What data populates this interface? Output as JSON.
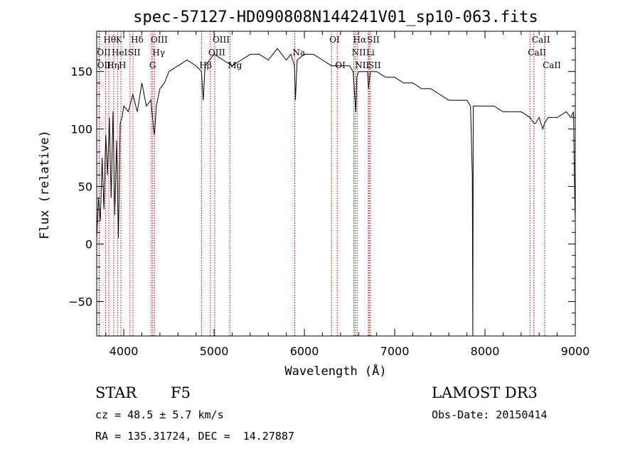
{
  "chart_data": {
    "type": "line",
    "title": "spec-57127-HD090808N144241V01_sp10-063.fits",
    "xlabel": "Wavelength (Å)",
    "ylabel": "Flux (relative)",
    "xlim": [
      3700,
      9000
    ],
    "ylim": [
      -80,
      185
    ],
    "xticks": [
      4000,
      5000,
      6000,
      7000,
      8000,
      9000
    ],
    "yticks": [
      -50,
      0,
      50,
      100,
      150
    ],
    "grid": false,
    "series": [
      {
        "name": "Flux",
        "x": [
          3700,
          3720,
          3740,
          3760,
          3780,
          3800,
          3820,
          3840,
          3860,
          3880,
          3900,
          3920,
          3940,
          3960,
          3980,
          4000,
          4050,
          4100,
          4150,
          4200,
          4250,
          4300,
          4330,
          4340,
          4360,
          4400,
          4450,
          4500,
          4600,
          4700,
          4800,
          4860,
          4880,
          4900,
          4950,
          5000,
          5100,
          5200,
          5300,
          5400,
          5500,
          5600,
          5700,
          5800,
          5850,
          5890,
          5900,
          5920,
          6000,
          6100,
          6200,
          6300,
          6400,
          6500,
          6540,
          6560,
          6570,
          6580,
          6600,
          6650,
          6700,
          6710,
          6730,
          6800,
          6900,
          7000,
          7100,
          7200,
          7300,
          7400,
          7500,
          7600,
          7700,
          7800,
          7840,
          7860,
          7865,
          7870,
          7900,
          8000,
          8100,
          8200,
          8300,
          8400,
          8500,
          8540,
          8560,
          8600,
          8640,
          8660,
          8700,
          8800,
          8900,
          8950,
          8980,
          8990,
          9000
        ],
        "y": [
          5,
          40,
          20,
          75,
          30,
          95,
          60,
          110,
          40,
          115,
          25,
          90,
          5,
          105,
          110,
          120,
          115,
          130,
          115,
          140,
          120,
          125,
          100,
          95,
          120,
          135,
          140,
          150,
          155,
          160,
          155,
          150,
          125,
          155,
          160,
          165,
          160,
          155,
          160,
          165,
          165,
          160,
          170,
          160,
          165,
          155,
          125,
          160,
          165,
          165,
          160,
          155,
          155,
          155,
          150,
          125,
          115,
          145,
          150,
          150,
          150,
          135,
          150,
          150,
          145,
          145,
          140,
          140,
          135,
          135,
          130,
          125,
          125,
          125,
          120,
          60,
          -80,
          120,
          120,
          120,
          120,
          115,
          115,
          115,
          110,
          105,
          105,
          110,
          100,
          105,
          110,
          110,
          115,
          110,
          115,
          60,
          20
        ]
      }
    ],
    "lines": [
      {
        "name": "Hθ",
        "x": 3798,
        "row": 0
      },
      {
        "name": "OII",
        "x": 3727,
        "row": 1
      },
      {
        "name": "OII",
        "x": 3729,
        "row": 2
      },
      {
        "name": "Hη",
        "x": 3835,
        "row": 2
      },
      {
        "name": "HeI",
        "x": 3889,
        "row": 1
      },
      {
        "name": "K",
        "x": 3934,
        "row": 0
      },
      {
        "name": "H",
        "x": 3968,
        "row": 2
      },
      {
        "name": "SII",
        "x": 4069,
        "row": 1
      },
      {
        "name": "Hδ",
        "x": 4102,
        "row": 0
      },
      {
        "name": "OIII",
        "x": 4321,
        "row": 0
      },
      {
        "name": "Hγ",
        "x": 4340,
        "row": 1
      },
      {
        "name": "G",
        "x": 4305,
        "row": 2
      },
      {
        "name": "Hβ",
        "x": 4861,
        "row": 2
      },
      {
        "name": "OIII",
        "x": 4959,
        "row": 1
      },
      {
        "name": "OIII",
        "x": 5007,
        "row": 0
      },
      {
        "name": "Mg",
        "x": 5175,
        "row": 2
      },
      {
        "name": "Na",
        "x": 5893,
        "row": 1
      },
      {
        "name": "OI",
        "x": 6300,
        "row": 0
      },
      {
        "name": "OI",
        "x": 6364,
        "row": 2
      },
      {
        "name": "NII",
        "x": 6548,
        "row": 1
      },
      {
        "name": "Hα",
        "x": 6563,
        "row": 0
      },
      {
        "name": "NII",
        "x": 6584,
        "row": 2
      },
      {
        "name": "SII",
        "x": 6717,
        "row": 0
      },
      {
        "name": "Li",
        "x": 6708,
        "row": 1
      },
      {
        "name": "SII",
        "x": 6731,
        "row": 2
      },
      {
        "name": "CaII",
        "x": 8498,
        "row": 1
      },
      {
        "name": "CaII",
        "x": 8542,
        "row": 0
      },
      {
        "name": "CaII",
        "x": 8662,
        "row": 2
      }
    ],
    "line_color": "#c00000",
    "spectrum_color": "#000000"
  },
  "info": {
    "class": "STAR",
    "subclass": "F5",
    "cz": "cz = 48.5 ± 5.7 km/s",
    "coords": "RA = 135.31724, DEC =  14.27887",
    "survey": "LAMOST DR3",
    "obs_date": "Obs-Date: 20150414"
  }
}
